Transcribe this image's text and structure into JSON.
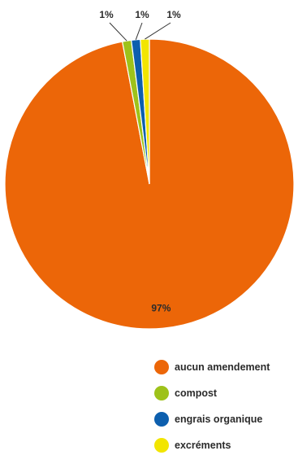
{
  "chart_data": {
    "type": "pie",
    "title": "",
    "slices": [
      {
        "label": "aucun amendement",
        "value": 97,
        "display": "97%",
        "color": "#EC6608"
      },
      {
        "label": "compost",
        "value": 1,
        "display": "1%",
        "color": "#9EC21A"
      },
      {
        "label": "engrais organique",
        "value": 1,
        "display": "1%",
        "color": "#0D5FAE"
      },
      {
        "label": "excréments",
        "value": 1,
        "display": "1%",
        "color": "#F2E500"
      }
    ],
    "legend_position": "bottom-right"
  }
}
